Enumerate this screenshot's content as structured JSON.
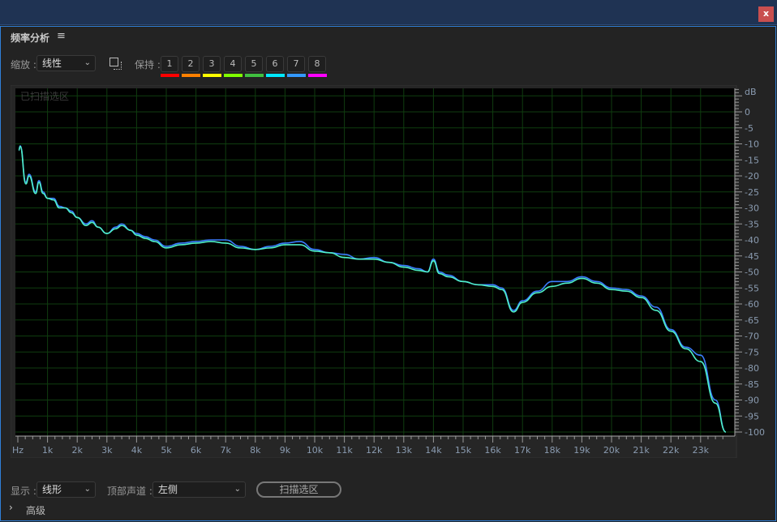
{
  "window": {
    "close_label": "x"
  },
  "panel": {
    "title": "频率分析",
    "menu_icon": "hamburger-icon"
  },
  "toolbar": {
    "zoom_label": "缩放 :",
    "zoom_value": "线性",
    "hold_label": "保持 :",
    "hold_buttons": [
      {
        "label": "1",
        "color": "#ff0000"
      },
      {
        "label": "2",
        "color": "#ff8000"
      },
      {
        "label": "3",
        "color": "#ffff00"
      },
      {
        "label": "4",
        "color": "#80ff00"
      },
      {
        "label": "5",
        "color": "#40c040"
      },
      {
        "label": "6",
        "color": "#00e8ff"
      },
      {
        "label": "7",
        "color": "#3399ff"
      },
      {
        "label": "8",
        "color": "#ff00ff"
      }
    ]
  },
  "plot": {
    "overlay_label": "已扫描选区"
  },
  "chart_data": {
    "type": "line",
    "xlabel": "Hz",
    "ylabel": "dB",
    "x_unit": "kHz",
    "xlim": [
      0,
      24
    ],
    "ylim": [
      -100,
      5
    ],
    "x_ticks": [
      "Hz",
      "1k",
      "2k",
      "3k",
      "4k",
      "5k",
      "6k",
      "7k",
      "8k",
      "9k",
      "10k",
      "11k",
      "12k",
      "13k",
      "14k",
      "15k",
      "16k",
      "17k",
      "18k",
      "19k",
      "20k",
      "21k",
      "22k",
      "23k"
    ],
    "y_ticks": [
      "0",
      "-5",
      "-10",
      "-15",
      "-20",
      "-25",
      "-30",
      "-35",
      "-40",
      "-45",
      "-50",
      "-55",
      "-60",
      "-65",
      "-70",
      "-75",
      "-80",
      "-85",
      "-90",
      "-95",
      "-100"
    ],
    "grid": true,
    "series": [
      {
        "color": "#3a7dff",
        "points": [
          [
            0.03,
            -12
          ],
          [
            0.08,
            -10.6
          ],
          [
            0.27,
            -22
          ],
          [
            0.38,
            -19.5
          ],
          [
            0.6,
            -25
          ],
          [
            0.71,
            -21.5
          ],
          [
            0.85,
            -25
          ],
          [
            1.0,
            -27
          ],
          [
            1.2,
            -27
          ],
          [
            1.4,
            -29.5
          ],
          [
            1.6,
            -30
          ],
          [
            1.8,
            -31
          ],
          [
            2.0,
            -33
          ],
          [
            2.3,
            -35
          ],
          [
            2.5,
            -34
          ],
          [
            2.7,
            -36
          ],
          [
            3.0,
            -38
          ],
          [
            3.3,
            -36
          ],
          [
            3.5,
            -35
          ],
          [
            3.8,
            -37
          ],
          [
            4.0,
            -38
          ],
          [
            4.3,
            -39
          ],
          [
            4.6,
            -40
          ],
          [
            5.0,
            -42
          ],
          [
            5.5,
            -41
          ],
          [
            6.0,
            -40.5
          ],
          [
            6.5,
            -40
          ],
          [
            7.0,
            -40
          ],
          [
            7.5,
            -42
          ],
          [
            8.0,
            -43
          ],
          [
            8.5,
            -42
          ],
          [
            9.0,
            -41
          ],
          [
            9.5,
            -40.5
          ],
          [
            10.0,
            -43
          ],
          [
            10.5,
            -44
          ],
          [
            11.0,
            -44.5
          ],
          [
            11.5,
            -46
          ],
          [
            12.0,
            -45.5
          ],
          [
            12.5,
            -47
          ],
          [
            13.0,
            -48
          ],
          [
            13.5,
            -49
          ],
          [
            13.8,
            -50
          ],
          [
            14.0,
            -46
          ],
          [
            14.2,
            -50
          ],
          [
            14.5,
            -51
          ],
          [
            15.0,
            -53
          ],
          [
            15.5,
            -54
          ],
          [
            16.0,
            -54
          ],
          [
            16.3,
            -55
          ],
          [
            16.7,
            -62
          ],
          [
            17.0,
            -59
          ],
          [
            17.5,
            -56
          ],
          [
            18.0,
            -53
          ],
          [
            18.5,
            -53
          ],
          [
            19.0,
            -51.5
          ],
          [
            19.5,
            -53
          ],
          [
            20.0,
            -55
          ],
          [
            20.5,
            -55.5
          ],
          [
            21.0,
            -57.5
          ],
          [
            21.5,
            -61
          ],
          [
            22.0,
            -68
          ],
          [
            22.5,
            -73.5
          ],
          [
            23.0,
            -76
          ],
          [
            23.5,
            -90
          ],
          [
            23.85,
            -100
          ]
        ]
      },
      {
        "color": "#4ff0c8",
        "points": [
          [
            0.03,
            -12
          ],
          [
            0.08,
            -10.8
          ],
          [
            0.27,
            -22.5
          ],
          [
            0.38,
            -20
          ],
          [
            0.6,
            -25.5
          ],
          [
            0.71,
            -22
          ],
          [
            0.85,
            -25.5
          ],
          [
            1.0,
            -27
          ],
          [
            1.2,
            -27.5
          ],
          [
            1.4,
            -30
          ],
          [
            1.6,
            -30
          ],
          [
            1.8,
            -31.5
          ],
          [
            2.0,
            -33
          ],
          [
            2.3,
            -35.5
          ],
          [
            2.5,
            -34.5
          ],
          [
            2.7,
            -36
          ],
          [
            3.0,
            -38
          ],
          [
            3.3,
            -36.5
          ],
          [
            3.5,
            -35.5
          ],
          [
            3.8,
            -37
          ],
          [
            4.0,
            -38.5
          ],
          [
            4.3,
            -39.5
          ],
          [
            4.6,
            -40.5
          ],
          [
            5.0,
            -42.5
          ],
          [
            5.5,
            -41.5
          ],
          [
            6.0,
            -41
          ],
          [
            6.5,
            -40.5
          ],
          [
            7.0,
            -41
          ],
          [
            7.5,
            -42.5
          ],
          [
            8.0,
            -43
          ],
          [
            8.5,
            -42.5
          ],
          [
            9.0,
            -41.5
          ],
          [
            9.5,
            -41.5
          ],
          [
            10.0,
            -43.5
          ],
          [
            10.5,
            -44
          ],
          [
            11.0,
            -45.5
          ],
          [
            11.5,
            -46
          ],
          [
            12.0,
            -46
          ],
          [
            12.5,
            -47
          ],
          [
            13.0,
            -48.5
          ],
          [
            13.5,
            -49.5
          ],
          [
            13.8,
            -50
          ],
          [
            14.0,
            -46.5
          ],
          [
            14.2,
            -50.5
          ],
          [
            14.5,
            -51.5
          ],
          [
            15.0,
            -53
          ],
          [
            15.5,
            -54
          ],
          [
            16.0,
            -54.5
          ],
          [
            16.3,
            -55.5
          ],
          [
            16.7,
            -62.5
          ],
          [
            17.0,
            -59.5
          ],
          [
            17.5,
            -56.5
          ],
          [
            18.0,
            -54.5
          ],
          [
            18.5,
            -53.5
          ],
          [
            19.0,
            -52
          ],
          [
            19.5,
            -53.5
          ],
          [
            20.0,
            -55.5
          ],
          [
            20.5,
            -56
          ],
          [
            21.0,
            -58
          ],
          [
            21.5,
            -62
          ],
          [
            22.0,
            -68.5
          ],
          [
            22.5,
            -74
          ],
          [
            23.0,
            -78
          ],
          [
            23.5,
            -91
          ],
          [
            23.85,
            -100
          ]
        ]
      }
    ]
  },
  "footer": {
    "display_label": "显示 :",
    "display_value": "线形",
    "channel_label": "顶部声道 :",
    "channel_value": "左侧",
    "scan_button": "扫描选区",
    "advanced_label": "高级"
  }
}
